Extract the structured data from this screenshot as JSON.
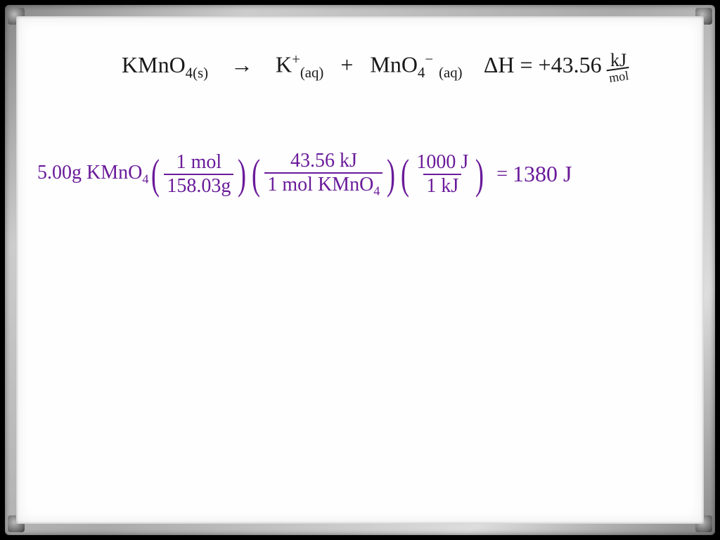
{
  "equation": {
    "reactant": "KMnO",
    "reactant_sub": "4(s)",
    "arrow": "→",
    "product1": "K",
    "product1_sup": "+",
    "product1_sub": "(aq)",
    "plus": "+",
    "product2": "MnO",
    "product2_sub": "4",
    "product2_sup": "−",
    "product2_state": "(aq)",
    "dH_label": "ΔH =",
    "dH_value": "+43.56",
    "dH_unit_top": "kJ",
    "dH_unit_bot": "mol"
  },
  "calculation": {
    "lead": "5.00g KMnO",
    "lead_sub": "4",
    "f1_num": "1 mol",
    "f1_den": "158.03g",
    "f2_num": "43.56 kJ",
    "f2_den": "1 mol KMnO",
    "f2_den_sub": "4",
    "f3_num": "1000 J",
    "f3_den": "1 kJ",
    "equals": "=",
    "result": "1380 J"
  },
  "colors": {
    "equation": "#1a1a1a",
    "calculation": "#6a1b9a",
    "board": "#fefefe"
  }
}
